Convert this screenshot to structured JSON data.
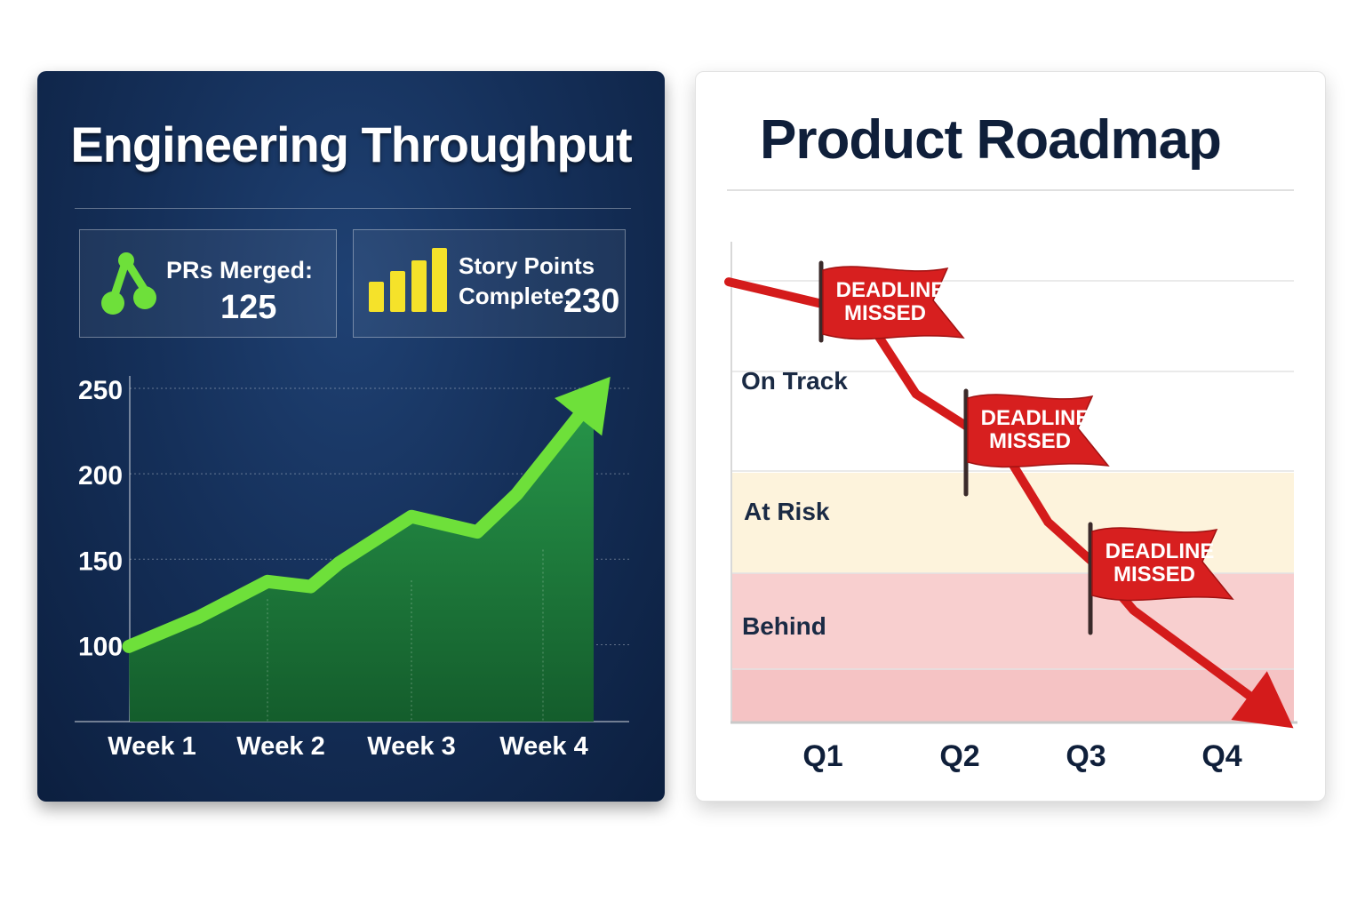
{
  "panels": {
    "engineering": {
      "title": "Engineering Throughput",
      "kpis": [
        {
          "label": "PRs Merged:",
          "value": "125",
          "icon": "git-merge-icon",
          "color": "#6ee03a"
        },
        {
          "label_line1": "Story Points",
          "label_line2": "Complete:",
          "value": "230",
          "icon": "bar-chart-icon",
          "color": "#f5e22a"
        }
      ]
    },
    "roadmap": {
      "title": "Product Roadmap",
      "flag_label_line1": "DEADLINE",
      "flag_label_line2": "MISSED"
    }
  },
  "chart_data": [
    {
      "type": "area",
      "title": "Engineering Throughput",
      "categories": [
        "Week 1",
        "Week 2",
        "Week 3",
        "Week 4"
      ],
      "x": [
        0,
        0.5,
        1,
        1.3,
        1.5,
        2,
        2.5,
        2.8,
        3.4
      ],
      "values": [
        99,
        116,
        137,
        134,
        148,
        175,
        166,
        188,
        246
      ],
      "yticks": [
        100,
        150,
        200,
        250
      ],
      "ylim": [
        55,
        250
      ],
      "grid": true,
      "line_color": "#6ee03a",
      "fill_color": "#1f7a3a",
      "end_marker": "arrow"
    },
    {
      "type": "line",
      "title": "Product Roadmap",
      "categories": [
        "Q1",
        "Q2",
        "Q3",
        "Q4"
      ],
      "bands": [
        {
          "label": "On Track",
          "color": "#ffffff"
        },
        {
          "label": "At Risk",
          "color": "#fdf3dc"
        },
        {
          "label": "Behind",
          "color": "#f8cfcf"
        }
      ],
      "x": [
        0,
        0.3,
        0.68,
        1.35,
        1.7,
        2.05,
        2.35,
        2.75,
        3.35
      ],
      "values": [
        100,
        92,
        72,
        58,
        40,
        30,
        18,
        8,
        -7
      ],
      "ylim": [
        -10,
        110
      ],
      "line_color": "#d41b1b",
      "end_marker": "arrow",
      "annotations": [
        {
          "text": "DEADLINE MISSED",
          "x": 0.64,
          "y": 72
        },
        {
          "text": "DEADLINE MISSED",
          "x": 1.7,
          "y": 40
        },
        {
          "text": "DEADLINE MISSED",
          "x": 2.6,
          "y": 16
        }
      ]
    }
  ]
}
